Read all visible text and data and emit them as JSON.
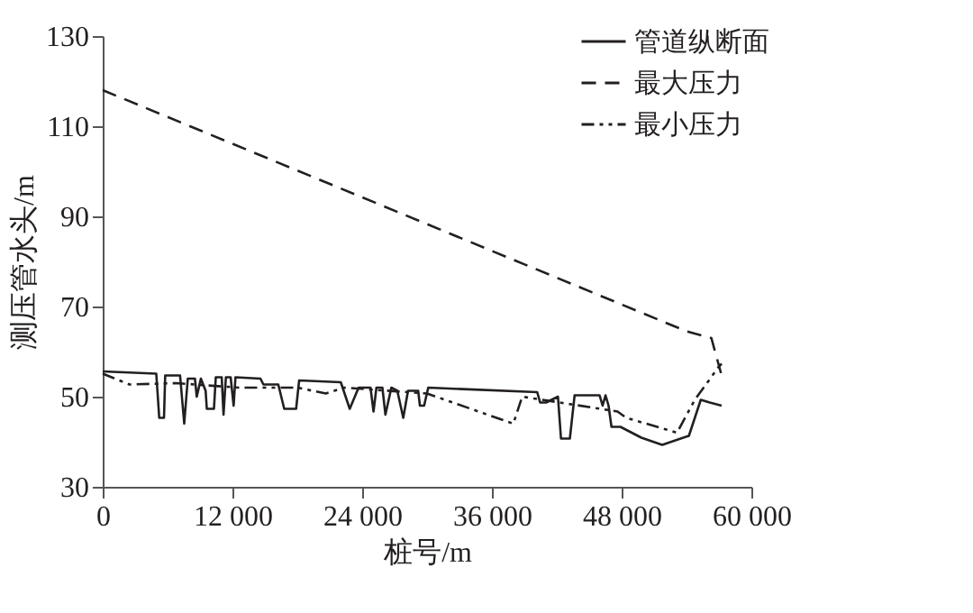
{
  "chart_data": {
    "type": "line",
    "xlabel": "桩号/m",
    "ylabel": "测压管水头/m",
    "xlim": [
      0,
      60000
    ],
    "xticks": [
      0,
      {
        "value": 12000,
        "label": "12 000"
      },
      {
        "value": 24000,
        "label": "24 000"
      },
      {
        "value": 36000,
        "label": "36 000"
      },
      {
        "value": 48000,
        "label": "48 000"
      },
      {
        "value": 60000,
        "label": "60 000"
      }
    ],
    "ylim": [
      30,
      130
    ],
    "yticks": [
      30,
      50,
      70,
      90,
      110,
      130
    ],
    "grid": false,
    "legend": "top right",
    "series": [
      {
        "name": "管道纵断面",
        "color": "#231f20",
        "line_style": "solid",
        "x": [
          0,
          4954,
          5230,
          5670,
          5780,
          7156,
          7540,
          7870,
          8530,
          8700,
          9080,
          9520,
          9630,
          10290,
          10460,
          11010,
          11175,
          11395,
          11835,
          12110,
          12280,
          14590,
          14865,
          16240,
          16790,
          17890,
          18170,
          22020,
          22850,
          23670,
          24770,
          25050,
          25320,
          25870,
          26150,
          26700,
          27250,
          27800,
          28240,
          29180,
          29340,
          29730,
          30110,
          40190,
          40460,
          41010,
          42110,
          42390,
          43210,
          43650,
          45960,
          46240,
          46510,
          46790,
          47060,
          47890,
          49820,
          51750,
          54220,
          55320,
          56150,
          57250
        ],
        "values": [
          55.6,
          55.1,
          45.3,
          45.3,
          54.7,
          54.7,
          44,
          54,
          54,
          50,
          54,
          51.3,
          47.3,
          47.3,
          54.3,
          54.3,
          46,
          54.3,
          54.3,
          48,
          54.3,
          54,
          52.7,
          52.7,
          47.3,
          47.3,
          53.6,
          53.2,
          47.3,
          52,
          52,
          46.7,
          52,
          52,
          46,
          52,
          51.3,
          45.3,
          51.3,
          51.3,
          48,
          48,
          52,
          51,
          48.7,
          48.7,
          50,
          40.7,
          40.7,
          50.3,
          50.3,
          48,
          50.3,
          48,
          43.3,
          43.3,
          40.9,
          39.3,
          41.3,
          49.3,
          48.7,
          48
        ]
      },
      {
        "name": "最大压力",
        "color": "#231f20",
        "line_style": "dashed",
        "x": [
          0,
          54000,
          56300,
          56870,
          57250
        ],
        "values": [
          118,
          64.5,
          63,
          58,
          54.7
        ]
      },
      {
        "name": "最小压力",
        "color": "#231f20",
        "line_style": "dotted",
        "x": [
          0,
          2480,
          6800,
          12600,
          18000,
          20640,
          22300,
          30000,
          37980,
          38800,
          47620,
          48440,
          53120,
          54770,
          57000,
          57250
        ],
        "values": [
          55.1,
          52.7,
          53,
          52,
          52,
          50.7,
          52,
          50.7,
          44,
          50,
          46.7,
          45.3,
          42,
          49.3,
          56.7,
          57.3
        ]
      }
    ]
  }
}
